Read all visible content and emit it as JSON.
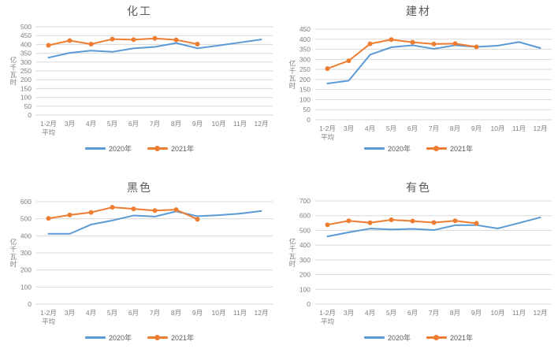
{
  "page": {
    "background": "#FFFFFF"
  },
  "colors": {
    "series_2020": "#5B9BD5",
    "series_2021": "#ED7D31",
    "grid": "#D9D9D9",
    "axis_text": "#7F7F7F",
    "title_text": "#595959"
  },
  "chart_data": [
    {
      "type": "line",
      "title": "化工",
      "unit_label": "亿千瓦时",
      "categories": [
        "1-2月\n平均",
        "3月",
        "4月",
        "5月",
        "6月",
        "7月",
        "8月",
        "9月",
        "10月",
        "11月",
        "12月"
      ],
      "ylim": [
        0,
        500
      ],
      "ystep": 50,
      "grid": true,
      "legend_position": "bottom",
      "series": [
        {
          "name": "2020年",
          "color": "#5B9BD5",
          "marker": false,
          "values": [
            325,
            352,
            365,
            358,
            378,
            386,
            408,
            378,
            394,
            411,
            428
          ]
        },
        {
          "name": "2021年",
          "color": "#ED7D31",
          "marker": true,
          "values": [
            395,
            422,
            402,
            430,
            427,
            434,
            426,
            402
          ]
        }
      ]
    },
    {
      "type": "line",
      "title": "建材",
      "unit_label": "亿千瓦时",
      "categories": [
        "1-2月\n平均",
        "3月",
        "4月",
        "5月",
        "6月",
        "7月",
        "8月",
        "9月",
        "10月",
        "11月",
        "12月"
      ],
      "ylim": [
        0,
        450
      ],
      "ystep": 50,
      "grid": true,
      "legend_position": "bottom",
      "series": [
        {
          "name": "2020年",
          "color": "#5B9BD5",
          "marker": false,
          "values": [
            180,
            194,
            323,
            360,
            370,
            352,
            370,
            362,
            368,
            386,
            356
          ]
        },
        {
          "name": "2021年",
          "color": "#ED7D31",
          "marker": true,
          "values": [
            254,
            293,
            377,
            398,
            385,
            376,
            378,
            362
          ]
        }
      ]
    },
    {
      "type": "line",
      "title": "黑色",
      "unit_label": "亿千瓦时",
      "categories": [
        "1-2月\n平均",
        "3月",
        "4月",
        "5月",
        "6月",
        "7月",
        "8月",
        "9月",
        "10月",
        "11月",
        "12月"
      ],
      "ylim": [
        0,
        600
      ],
      "ystep": 100,
      "grid": true,
      "legend_position": "bottom",
      "series": [
        {
          "name": "2020年",
          "color": "#5B9BD5",
          "marker": false,
          "values": [
            412,
            412,
            466,
            490,
            519,
            513,
            543,
            515,
            521,
            530,
            545
          ]
        },
        {
          "name": "2021年",
          "color": "#ED7D31",
          "marker": true,
          "values": [
            502,
            522,
            537,
            567,
            558,
            548,
            553,
            497
          ]
        }
      ]
    },
    {
      "type": "line",
      "title": "有色",
      "unit_label": "亿千瓦时",
      "categories": [
        "1-2月\n平均",
        "3月",
        "4月",
        "5月",
        "6月",
        "7月",
        "8月",
        "9月",
        "10月",
        "11月",
        "12月"
      ],
      "ylim": [
        0,
        700
      ],
      "ystep": 100,
      "grid": true,
      "legend_position": "bottom",
      "series": [
        {
          "name": "2020年",
          "color": "#5B9BD5",
          "marker": false,
          "values": [
            459,
            487,
            512,
            506,
            510,
            502,
            535,
            536,
            513,
            550,
            588
          ]
        },
        {
          "name": "2021年",
          "color": "#ED7D31",
          "marker": true,
          "values": [
            538,
            565,
            552,
            572,
            563,
            553,
            565,
            548
          ]
        }
      ]
    }
  ]
}
